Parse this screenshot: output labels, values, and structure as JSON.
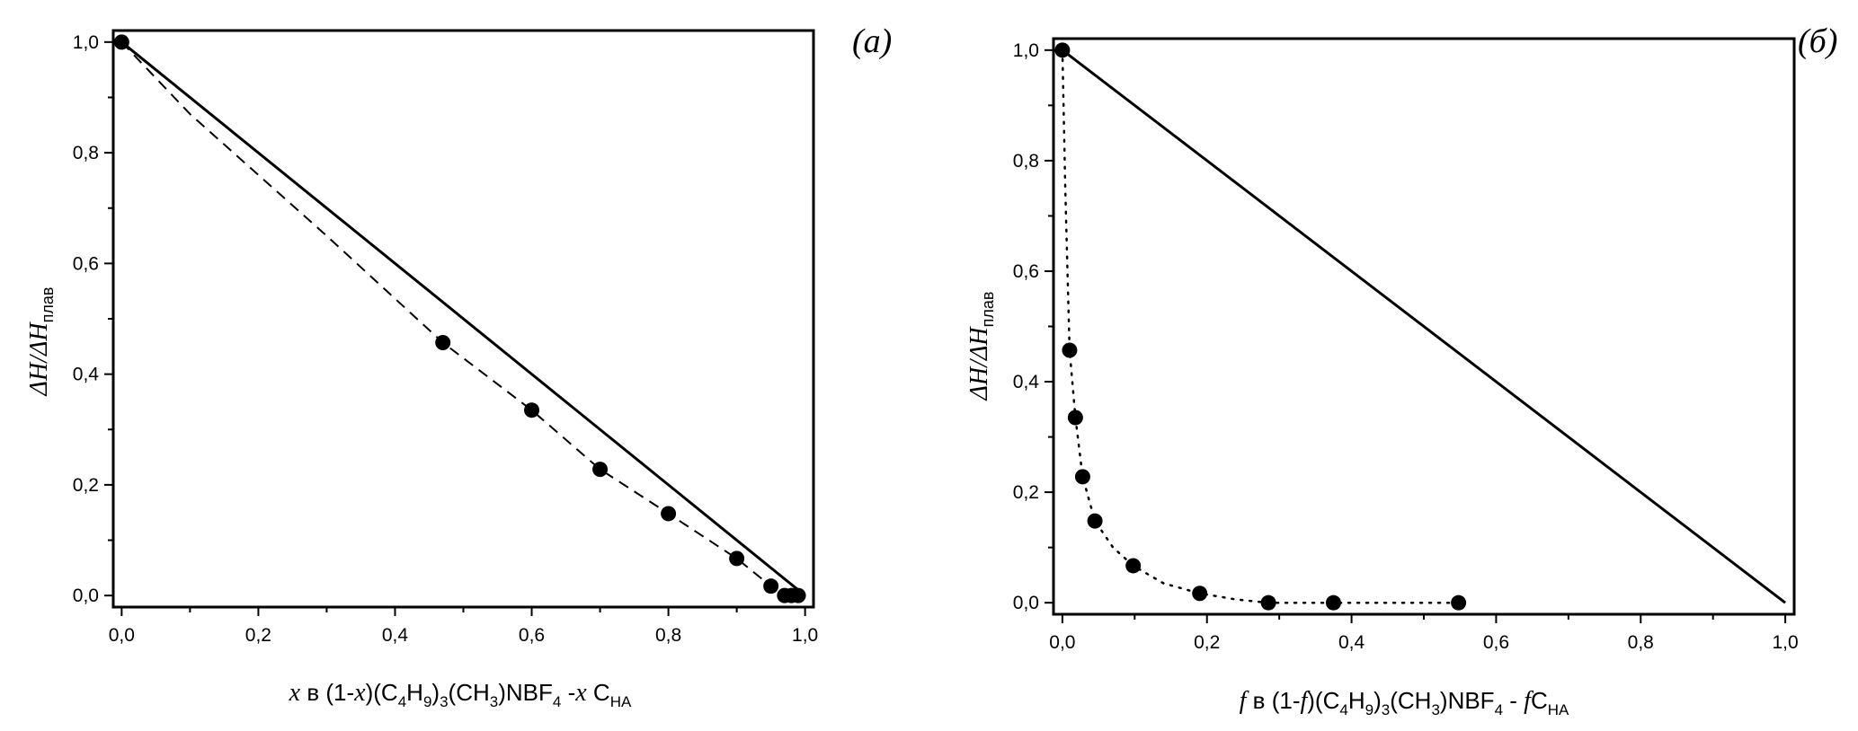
{
  "chart_data": [
    {
      "type": "scatter",
      "panel_label": "(a)",
      "xlim": [
        0,
        1.0
      ],
      "ylim": [
        0,
        1.0
      ],
      "x_ticks": [
        "0,0",
        "0,2",
        "0,4",
        "0,6",
        "0,8",
        "1,0"
      ],
      "y_ticks": [
        "0,0",
        "0,2",
        "0,4",
        "0,6",
        "0,8",
        "1,0"
      ],
      "xlabel": {
        "var": "x",
        "pre": " в (1-",
        "var2": "x",
        "mid1": ")(C",
        "s1": "4",
        "h": "H",
        "s2": "9",
        "p": ")",
        "s3": "3",
        "rest": "(CH",
        "s4": "3",
        "rest2": ")NBF",
        "s5": "4",
        "dash": " -",
        "var3": "x",
        "tail": " C",
        "sub_tail": "НА"
      },
      "ylabel": {
        "main": "ΔH/ΔH",
        "sub": "плав"
      },
      "series": [
        {
          "style": "markers",
          "x": [
            0.0,
            0.47,
            0.6,
            0.7,
            0.8,
            0.9,
            0.95,
            0.97,
            0.98,
            0.99
          ],
          "y": [
            1.0,
            0.457,
            0.335,
            0.228,
            0.148,
            0.067,
            0.017,
            0.0,
            0.0,
            0.0
          ]
        },
        {
          "style": "dashed",
          "x": [
            0.0,
            0.1,
            0.2,
            0.3,
            0.47,
            0.6,
            0.7,
            0.8,
            0.9,
            0.95,
            0.98
          ],
          "y": [
            1.0,
            0.87,
            0.76,
            0.65,
            0.457,
            0.335,
            0.228,
            0.148,
            0.067,
            0.017,
            0.0
          ]
        },
        {
          "style": "solid",
          "x": [
            0.0,
            1.0
          ],
          "y": [
            1.0,
            0.0
          ]
        }
      ]
    },
    {
      "type": "scatter",
      "panel_label": "(б)",
      "xlim": [
        0,
        1.0
      ],
      "ylim": [
        0,
        1.0
      ],
      "x_ticks": [
        "0,0",
        "0,2",
        "0,4",
        "0,6",
        "0,8",
        "1,0"
      ],
      "y_ticks": [
        "0,0",
        "0,2",
        "0,4",
        "0,6",
        "0,8",
        "1,0"
      ],
      "xlabel": {
        "var": "f",
        "pre": " в (1-",
        "var2": "f",
        "mid1": ")(C",
        "s1": "4",
        "h": "H",
        "s2": "9",
        "p": ")",
        "s3": "3",
        "rest": "(CH",
        "s4": "3",
        "rest2": ")NBF",
        "s5": "4",
        "dash": " - ",
        "var3": "f",
        "tail": "C",
        "sub_tail": "НА"
      },
      "ylabel": {
        "main": "ΔH/ΔH",
        "sub": "плав"
      },
      "series": [
        {
          "style": "markers",
          "x": [
            0.0,
            0.01,
            0.018,
            0.028,
            0.045,
            0.098,
            0.19,
            0.285,
            0.375,
            0.548
          ],
          "y": [
            1.0,
            0.457,
            0.335,
            0.228,
            0.148,
            0.067,
            0.017,
            0.0,
            0.0,
            0.0
          ]
        },
        {
          "style": "dotted",
          "x": [
            0.0,
            0.004,
            0.01,
            0.018,
            0.028,
            0.045,
            0.07,
            0.098,
            0.14,
            0.19,
            0.24,
            0.285,
            0.375,
            0.548
          ],
          "y": [
            1.0,
            0.75,
            0.457,
            0.335,
            0.228,
            0.148,
            0.1,
            0.067,
            0.035,
            0.017,
            0.006,
            0.0,
            0.0,
            0.0
          ]
        },
        {
          "style": "solid",
          "x": [
            0.0,
            1.0
          ],
          "y": [
            1.0,
            0.0
          ]
        }
      ]
    }
  ]
}
